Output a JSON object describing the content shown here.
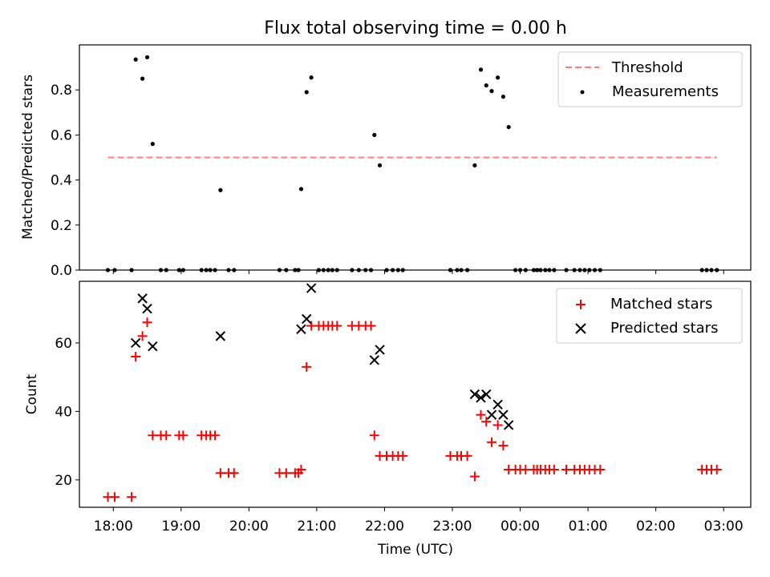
{
  "chart_data": [
    {
      "type": "scatter",
      "title": "Flux total observing time = 0.00 h",
      "ylabel": "Matched/Predicted stars",
      "xlim": [
        -0.5,
        9.4
      ],
      "ylim": [
        0,
        1
      ],
      "y_ticks": [
        0.0,
        0.2,
        0.4,
        0.6,
        0.8
      ],
      "y_tick_labels": [
        "0.0",
        "0.2",
        "0.4",
        "0.6",
        "0.8"
      ],
      "threshold": {
        "name": "Threshold",
        "value": 0.5,
        "x_range": [
          -0.08,
          8.9
        ],
        "color": "#ff7f7f"
      },
      "series": [
        {
          "name": "Measurements",
          "color": "#000000",
          "points": [
            [
              -0.08,
              0
            ],
            [
              0.02,
              0
            ],
            [
              0.27,
              0
            ],
            [
              0.33,
              0.935
            ],
            [
              0.43,
              0.85
            ],
            [
              0.5,
              0.945
            ],
            [
              0.58,
              0.56
            ],
            [
              0.7,
              0
            ],
            [
              0.78,
              0
            ],
            [
              0.97,
              0
            ],
            [
              1.03,
              0
            ],
            [
              1.3,
              0
            ],
            [
              1.37,
              0
            ],
            [
              1.43,
              0
            ],
            [
              1.5,
              0
            ],
            [
              1.58,
              0.355
            ],
            [
              1.7,
              0
            ],
            [
              1.78,
              0
            ],
            [
              2.45,
              0
            ],
            [
              2.55,
              0
            ],
            [
              2.68,
              0
            ],
            [
              2.73,
              0
            ],
            [
              2.77,
              0.36
            ],
            [
              2.85,
              0.79
            ],
            [
              2.92,
              0.855
            ],
            [
              3.03,
              0
            ],
            [
              3.1,
              0
            ],
            [
              3.17,
              0
            ],
            [
              3.23,
              0
            ],
            [
              3.3,
              0
            ],
            [
              3.52,
              0
            ],
            [
              3.62,
              0
            ],
            [
              3.72,
              0
            ],
            [
              3.8,
              0
            ],
            [
              3.85,
              0.6
            ],
            [
              3.93,
              0.465
            ],
            [
              4.03,
              0
            ],
            [
              4.12,
              0
            ],
            [
              4.2,
              0
            ],
            [
              4.27,
              0
            ],
            [
              4.97,
              0
            ],
            [
              5.07,
              0
            ],
            [
              5.13,
              0
            ],
            [
              5.22,
              0
            ],
            [
              5.33,
              0.465
            ],
            [
              5.42,
              0.89
            ],
            [
              5.5,
              0.82
            ],
            [
              5.58,
              0.795
            ],
            [
              5.67,
              0.855
            ],
            [
              5.75,
              0.77
            ],
            [
              5.83,
              0.635
            ],
            [
              5.93,
              0
            ],
            [
              6.0,
              0
            ],
            [
              6.08,
              0
            ],
            [
              6.2,
              0
            ],
            [
              6.25,
              0
            ],
            [
              6.3,
              0
            ],
            [
              6.37,
              0
            ],
            [
              6.43,
              0
            ],
            [
              6.5,
              0
            ],
            [
              6.68,
              0
            ],
            [
              6.8,
              0
            ],
            [
              6.88,
              0
            ],
            [
              6.95,
              0
            ],
            [
              7.02,
              0
            ],
            [
              7.1,
              0
            ],
            [
              7.18,
              0
            ],
            [
              8.68,
              0
            ],
            [
              8.75,
              0
            ],
            [
              8.82,
              0
            ],
            [
              8.9,
              0
            ]
          ]
        }
      ],
      "legend": {
        "position": "top-right",
        "entries": [
          "Threshold",
          "Measurements"
        ]
      }
    },
    {
      "type": "scatter",
      "xlabel": "Time (UTC)",
      "ylabel": "Count",
      "xlim": [
        -0.5,
        9.4
      ],
      "ylim": [
        12,
        78
      ],
      "y_ticks": [
        20,
        40,
        60
      ],
      "y_tick_labels": [
        "20",
        "40",
        "60"
      ],
      "x_ticks": [
        0,
        1,
        2,
        3,
        4,
        5,
        6,
        7,
        8,
        9
      ],
      "x_tick_labels": [
        "18:00",
        "19:00",
        "20:00",
        "21:00",
        "22:00",
        "23:00",
        "00:00",
        "01:00",
        "02:00",
        "03:00"
      ],
      "series": [
        {
          "name": "Matched stars",
          "color": "#ff0000",
          "marker": "plus",
          "points": [
            [
              -0.08,
              15
            ],
            [
              0.02,
              15
            ],
            [
              0.27,
              15
            ],
            [
              0.33,
              56
            ],
            [
              0.43,
              62
            ],
            [
              0.5,
              66
            ],
            [
              0.58,
              33
            ],
            [
              0.7,
              33
            ],
            [
              0.78,
              33
            ],
            [
              0.97,
              33
            ],
            [
              1.03,
              33
            ],
            [
              1.3,
              33
            ],
            [
              1.37,
              33
            ],
            [
              1.43,
              33
            ],
            [
              1.5,
              33
            ],
            [
              1.58,
              22
            ],
            [
              1.7,
              22
            ],
            [
              1.78,
              22
            ],
            [
              2.45,
              22
            ],
            [
              2.55,
              22
            ],
            [
              2.68,
              22
            ],
            [
              2.73,
              22
            ],
            [
              2.77,
              23
            ],
            [
              2.85,
              53
            ],
            [
              2.92,
              65
            ],
            [
              3.03,
              65
            ],
            [
              3.1,
              65
            ],
            [
              3.17,
              65
            ],
            [
              3.23,
              65
            ],
            [
              3.3,
              65
            ],
            [
              3.52,
              65
            ],
            [
              3.62,
              65
            ],
            [
              3.72,
              65
            ],
            [
              3.8,
              65
            ],
            [
              3.85,
              33
            ],
            [
              3.93,
              27
            ],
            [
              4.03,
              27
            ],
            [
              4.12,
              27
            ],
            [
              4.2,
              27
            ],
            [
              4.27,
              27
            ],
            [
              4.97,
              27
            ],
            [
              5.07,
              27
            ],
            [
              5.13,
              27
            ],
            [
              5.22,
              27
            ],
            [
              5.33,
              21
            ],
            [
              5.42,
              39
            ],
            [
              5.5,
              37
            ],
            [
              5.58,
              31
            ],
            [
              5.67,
              36
            ],
            [
              5.75,
              30
            ],
            [
              5.83,
              23
            ],
            [
              5.93,
              23
            ],
            [
              6.0,
              23
            ],
            [
              6.08,
              23
            ],
            [
              6.2,
              23
            ],
            [
              6.25,
              23
            ],
            [
              6.3,
              23
            ],
            [
              6.37,
              23
            ],
            [
              6.43,
              23
            ],
            [
              6.5,
              23
            ],
            [
              6.68,
              23
            ],
            [
              6.8,
              23
            ],
            [
              6.88,
              23
            ],
            [
              6.95,
              23
            ],
            [
              7.02,
              23
            ],
            [
              7.1,
              23
            ],
            [
              7.18,
              23
            ],
            [
              8.68,
              23
            ],
            [
              8.75,
              23
            ],
            [
              8.82,
              23
            ],
            [
              8.9,
              23
            ]
          ]
        },
        {
          "name": "Predicted stars",
          "color": "#000000",
          "marker": "cross",
          "points": [
            [
              0.33,
              60
            ],
            [
              0.43,
              73
            ],
            [
              0.5,
              70
            ],
            [
              0.58,
              59
            ],
            [
              1.58,
              62
            ],
            [
              2.77,
              64
            ],
            [
              2.85,
              67
            ],
            [
              2.92,
              76
            ],
            [
              3.85,
              55
            ],
            [
              3.93,
              58
            ],
            [
              5.33,
              45
            ],
            [
              5.42,
              44
            ],
            [
              5.5,
              45
            ],
            [
              5.58,
              39
            ],
            [
              5.67,
              42
            ],
            [
              5.75,
              39
            ],
            [
              5.83,
              36
            ]
          ]
        }
      ],
      "legend": {
        "position": "top-right",
        "entries": [
          "Matched stars",
          "Predicted stars"
        ]
      }
    }
  ]
}
